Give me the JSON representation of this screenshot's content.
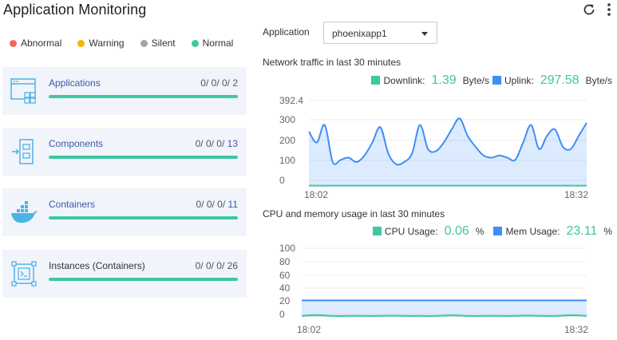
{
  "page": {
    "title": "Application Monitoring"
  },
  "legend": [
    {
      "label": "Abnormal",
      "color": "#f0685b"
    },
    {
      "label": "Warning",
      "color": "#f5b400"
    },
    {
      "label": "Silent",
      "color": "#a4a4a4"
    },
    {
      "label": "Normal",
      "color": "#3ec7a0"
    }
  ],
  "cards": [
    {
      "name": "Applications",
      "counts": "0/ 0/ 0/ 2",
      "icon": "application-window-icon",
      "fill": 1.0
    },
    {
      "name": "Components",
      "counts_prefix": "0/ 0/ 0/ ",
      "counts_hl": "13",
      "icon": "component-icon",
      "fill": 1.0
    },
    {
      "name": "Containers",
      "counts_prefix": "0/ 0/ 0/ ",
      "counts_hl": "11",
      "icon": "docker-whale-icon",
      "fill": 1.0
    },
    {
      "name": "Instances (Containers)",
      "counts": "0/ 0/ 0/ 26",
      "icon": "instance-terminal-icon",
      "fill": 1.0
    }
  ],
  "application_selector": {
    "label": "Application",
    "value": "phoenixapp1"
  },
  "network": {
    "title": "Network traffic in last 30 minutes",
    "downlink_label": "Downlink:",
    "downlink_value": "1.39",
    "downlink_unit": "Byte/s",
    "uplink_label": "Uplink:",
    "uplink_value": "297.58",
    "uplink_unit": "Byte/s",
    "downlink_color": "#3ec7a0",
    "uplink_color": "#3e8ef7"
  },
  "cpu_mem": {
    "title": "CPU and memory usage in last 30 minutes",
    "cpu_label": "CPU Usage:",
    "cpu_value": "0.06",
    "cpu_unit": "%",
    "mem_label": "Mem Usage:",
    "mem_value": "23.11",
    "mem_unit": "%",
    "cpu_color": "#3ec7a0",
    "mem_color": "#3e8ef7"
  },
  "chart_data": [
    {
      "type": "area",
      "y_ticks": [
        "392.4",
        "300",
        "200",
        "100",
        "0"
      ],
      "ylim": [
        0,
        392.4
      ],
      "x_ticks": [
        "18:02",
        "18:32"
      ],
      "series": [
        {
          "name": "Uplink",
          "color": "#3e8ef7",
          "values": [
            250,
            200,
            280,
            110,
            120,
            130,
            110,
            140,
            200,
            270,
            150,
            100,
            110,
            150,
            280,
            170,
            160,
            200,
            260,
            310,
            230,
            180,
            140,
            130,
            140,
            130,
            120,
            200,
            280,
            170,
            230,
            260,
            180,
            170,
            230,
            290
          ]
        },
        {
          "name": "Downlink",
          "color": "#3ec7a0",
          "values": [
            1.4,
            1.4,
            1.3,
            1.4,
            1.4,
            1.3,
            1.4,
            1.4,
            1.4,
            1.3,
            1.4,
            1.4,
            1.4,
            1.3,
            1.4,
            1.4,
            1.4,
            1.3,
            1.4,
            1.4,
            1.4,
            1.3,
            1.4,
            1.4,
            1.4,
            1.3,
            1.4,
            1.4,
            1.4,
            1.3,
            1.4,
            1.4,
            1.4,
            1.3,
            1.4,
            1.4
          ]
        }
      ]
    },
    {
      "type": "area",
      "y_ticks": [
        "100",
        "80",
        "60",
        "40",
        "20",
        "0"
      ],
      "ylim": [
        0,
        100
      ],
      "x_ticks": [
        "18:02",
        "18:32"
      ],
      "series": [
        {
          "name": "Mem Usage",
          "color": "#3e8ef7",
          "values": [
            23.1,
            23.1,
            23.1,
            23.1,
            23.1,
            23.1,
            23.1,
            23.1,
            23.1,
            23.1,
            23.1,
            23.1,
            23.1,
            23.1,
            23.1,
            23.1,
            23.1,
            23.1,
            23.1,
            23.1
          ]
        },
        {
          "name": "CPU Usage",
          "color": "#3ec7a0",
          "values": [
            0.1,
            1.5,
            0.1,
            0.1,
            0.1,
            0.1,
            0.5,
            0.1,
            0.1,
            0.1,
            1.0,
            0.1,
            0.1,
            0.1,
            0.1,
            0.6,
            0.1,
            0.1,
            1.2,
            0.1
          ]
        }
      ]
    }
  ]
}
